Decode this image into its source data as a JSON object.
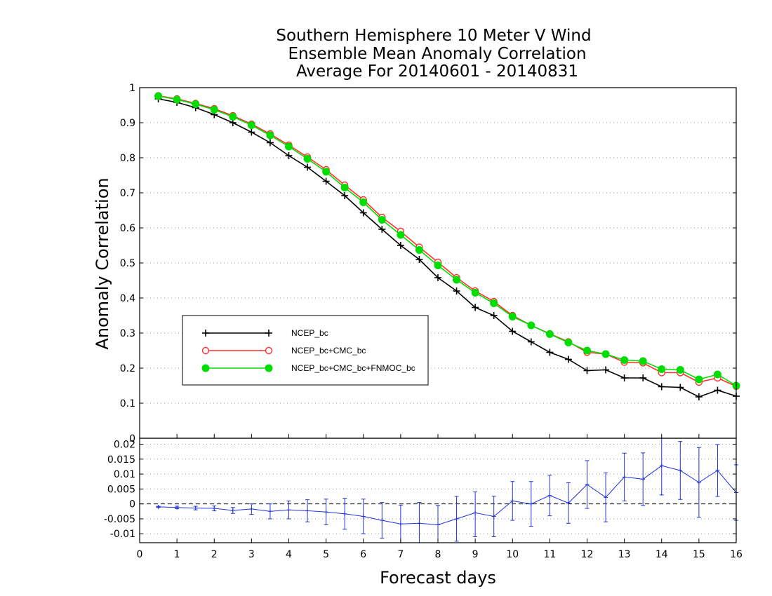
{
  "chart_data": [
    {
      "type": "line",
      "title_lines": [
        "Southern Hemisphere 10 Meter V Wind",
        "Ensemble Mean Anomaly Correlation",
        "Average For 20140601 - 20140831"
      ],
      "xlabel": "Forecast days",
      "ylabel": "Anomaly Correlation",
      "xlim": [
        0,
        16
      ],
      "ylim": [
        0,
        1
      ],
      "x_ticks": [
        "0",
        "1",
        "2",
        "3",
        "4",
        "5",
        "6",
        "7",
        "8",
        "9",
        "10",
        "11",
        "12",
        "13",
        "14",
        "15",
        "16"
      ],
      "y_ticks": [
        "0",
        "0.1",
        "0.2",
        "0.3",
        "0.4",
        "0.5",
        "0.6",
        "0.7",
        "0.8",
        "0.9",
        "1"
      ],
      "grid": "horizontal dotted",
      "legend_position": "lower-left",
      "x": [
        0.5,
        1,
        1.5,
        2,
        2.5,
        3,
        3.5,
        4,
        4.5,
        5,
        5.5,
        6,
        6.5,
        7,
        7.5,
        8,
        8.5,
        9,
        9.5,
        10,
        10.5,
        11,
        11.5,
        12,
        12.5,
        13,
        13.5,
        14,
        14.5,
        15,
        15.5,
        16
      ],
      "series": [
        {
          "name": "NCEP_bc",
          "color": "#000000",
          "marker": "plus",
          "values": [
            0.968,
            0.958,
            0.943,
            0.923,
            0.9,
            0.873,
            0.843,
            0.806,
            0.773,
            0.733,
            0.692,
            0.643,
            0.596,
            0.55,
            0.51,
            0.458,
            0.42,
            0.373,
            0.35,
            0.305,
            0.275,
            0.245,
            0.225,
            0.193,
            0.195,
            0.172,
            0.172,
            0.147,
            0.145,
            0.118,
            0.137,
            0.12
          ]
        },
        {
          "name": "NCEP_bc+CMC_bc",
          "color": "#ff3030",
          "marker": "open-circle",
          "values": [
            0.977,
            0.968,
            0.955,
            0.94,
            0.92,
            0.896,
            0.868,
            0.836,
            0.802,
            0.766,
            0.722,
            0.68,
            0.63,
            0.59,
            0.545,
            0.502,
            0.458,
            0.42,
            0.39,
            0.35,
            0.322,
            0.298,
            0.275,
            0.245,
            0.24,
            0.217,
            0.215,
            0.187,
            0.187,
            0.16,
            0.172,
            0.148
          ]
        },
        {
          "name": "NCEP_bc+CMC_bc+FNMOC_bc",
          "color": "#00dd00",
          "marker": "filled-circle",
          "values": [
            0.976,
            0.966,
            0.953,
            0.937,
            0.917,
            0.893,
            0.864,
            0.832,
            0.797,
            0.76,
            0.715,
            0.673,
            0.623,
            0.58,
            0.537,
            0.493,
            0.452,
            0.415,
            0.385,
            0.347,
            0.322,
            0.297,
            0.273,
            0.25,
            0.24,
            0.223,
            0.22,
            0.197,
            0.195,
            0.168,
            0.182,
            0.15
          ]
        }
      ]
    },
    {
      "type": "line",
      "xlim": [
        0,
        16
      ],
      "ylim": [
        -0.013,
        0.022
      ],
      "y_ticks": [
        "-0.01",
        "-0.005",
        "0",
        "0.005",
        "0.01",
        "0.015",
        "0.02"
      ],
      "grid": "horizontal dotted",
      "error_bars": true,
      "series": [
        {
          "color": "#2233dd",
          "marker": "plus",
          "x": [
            0.5,
            1,
            1.5,
            2,
            2.5,
            3,
            3.5,
            4,
            4.5,
            5,
            5.5,
            6,
            6.5,
            7,
            7.5,
            8,
            8.5,
            9,
            9.5,
            10,
            10.5,
            11,
            11.5,
            12,
            12.5,
            13,
            13.5,
            14,
            14.5,
            15,
            15.5,
            16
          ],
          "values": [
            -0.001,
            -0.0012,
            -0.0014,
            -0.0015,
            -0.0022,
            -0.0017,
            -0.0025,
            -0.002,
            -0.0023,
            -0.0027,
            -0.0033,
            -0.0042,
            -0.0055,
            -0.0067,
            -0.0065,
            -0.007,
            -0.005,
            -0.003,
            -0.0042,
            0.001,
            0.0,
            0.0028,
            0.0003,
            0.0065,
            0.0022,
            0.009,
            0.0083,
            0.0128,
            0.0112,
            0.0072,
            0.0112,
            0.0038
          ],
          "err_low": [
            -0.0012,
            -0.0016,
            -0.002,
            -0.0023,
            -0.0032,
            -0.0035,
            -0.005,
            -0.005,
            -0.006,
            -0.007,
            -0.0085,
            -0.01,
            -0.0115,
            -0.013,
            -0.0135,
            -0.0135,
            -0.0125,
            -0.011,
            -0.011,
            -0.0055,
            -0.0075,
            -0.004,
            -0.0065,
            -0.0015,
            -0.006,
            0.001,
            -0.0005,
            0.003,
            0.0015,
            -0.0045,
            0.0025,
            -0.0055
          ],
          "err_high": [
            -0.0008,
            -0.0008,
            -0.0008,
            -0.0007,
            -0.0012,
            0.0,
            0.0,
            0.001,
            0.0014,
            0.0016,
            0.0019,
            0.0016,
            0.0005,
            -0.0004,
            0.0005,
            -0.0005,
            0.0025,
            0.004,
            0.0026,
            0.0075,
            0.0075,
            0.0096,
            0.0071,
            0.0145,
            0.0104,
            0.017,
            0.0171,
            0.0226,
            0.0209,
            0.0189,
            0.0199,
            0.0131
          ]
        }
      ]
    }
  ]
}
